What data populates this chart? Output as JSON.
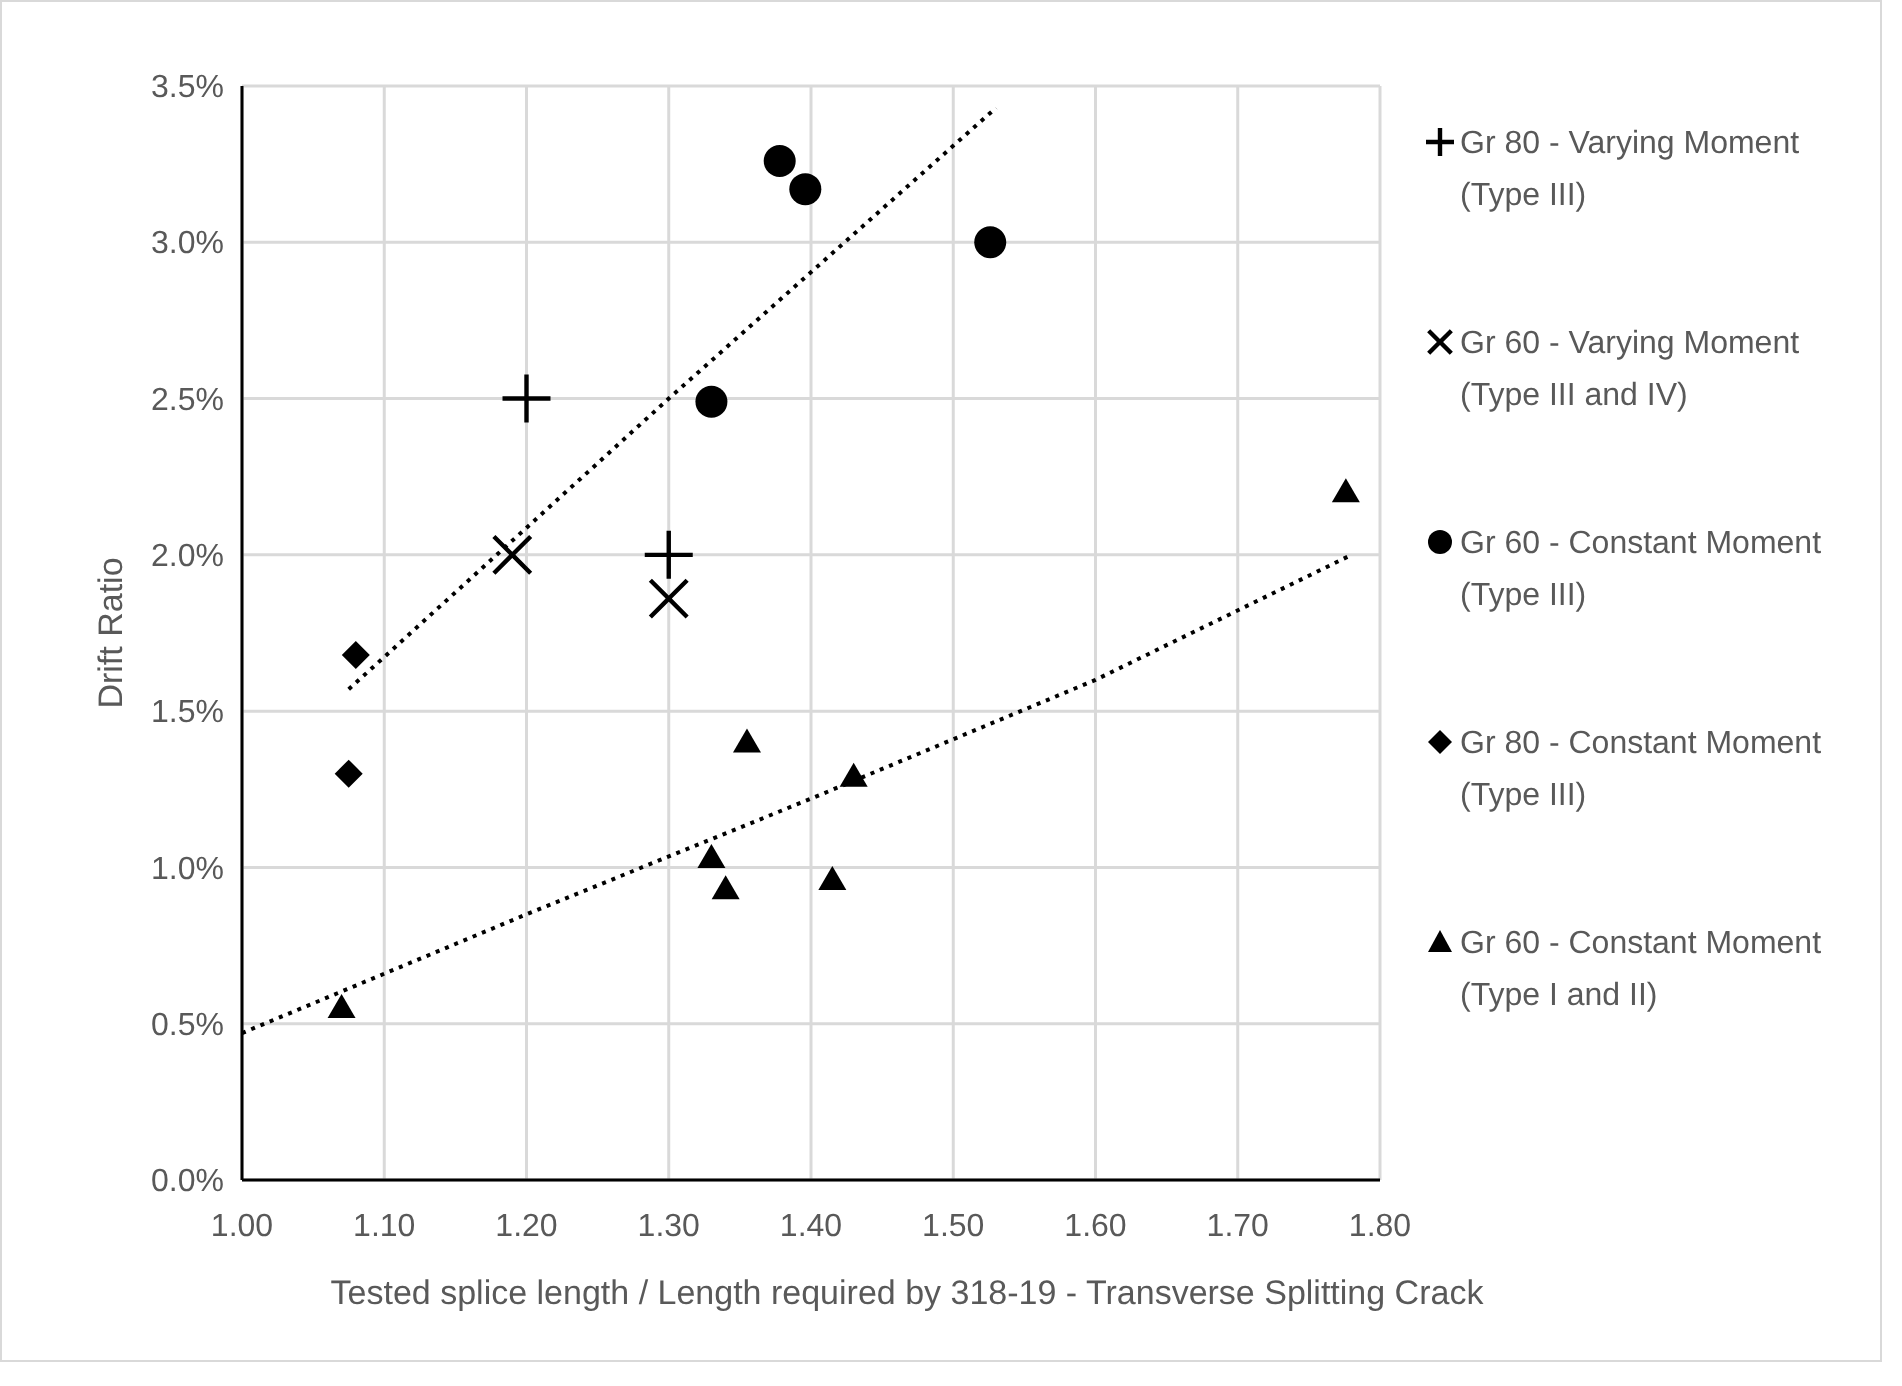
{
  "chart_data": {
    "type": "scatter",
    "xlabel": "Tested splice length / Length required by 318-19 - Transverse Splitting Crack",
    "ylabel": "Drift Ratio",
    "xlim": [
      1,
      1.8
    ],
    "xticks": [
      {
        "value": 1,
        "label": "1.00"
      },
      {
        "value": 1.1,
        "label": "1.10"
      },
      {
        "value": 1.2,
        "label": "1.20"
      },
      {
        "value": 1.3,
        "label": "1.30"
      },
      {
        "value": 1.4,
        "label": "1.40"
      },
      {
        "value": 1.5,
        "label": "1.50"
      },
      {
        "value": 1.6,
        "label": "1.60"
      },
      {
        "value": 1.7,
        "label": "1.70"
      },
      {
        "value": 1.8,
        "label": "1.80"
      }
    ],
    "ylim": [
      0,
      3.5
    ],
    "yticks": [
      {
        "value": 0,
        "label": "0.0%"
      },
      {
        "value": 0.5,
        "label": "0.5%"
      },
      {
        "value": 1,
        "label": "1.0%"
      },
      {
        "value": 1.5,
        "label": "1.5%"
      },
      {
        "value": 2,
        "label": "2.0%"
      },
      {
        "value": 2.5,
        "label": "2.5%"
      },
      {
        "value": 3,
        "label": "3.0%"
      },
      {
        "value": 3.5,
        "label": "3.5%"
      }
    ],
    "grid": true,
    "legend": "right",
    "series": [
      {
        "name": "Gr 80 - Varying Moment (Type III)",
        "color": "#000000",
        "marker": "cross",
        "x": [
          1.2,
          1.3
        ],
        "values": [
          2.5,
          2.0
        ]
      },
      {
        "name": "Gr 60 - Varying Moment (Type III and IV)",
        "color": "#000000",
        "marker": "x",
        "x": [
          1.19,
          1.3
        ],
        "values": [
          2.0,
          1.86
        ]
      },
      {
        "name": "Gr 60 - Constant Moment (Type III)",
        "color": "#000000",
        "marker": "circle",
        "x": [
          1.378,
          1.396,
          1.526,
          1.33
        ],
        "values": [
          3.26,
          3.17,
          3.0,
          2.49
        ]
      },
      {
        "name": "Gr 80 - Constant Moment (Type III)",
        "color": "#000000",
        "marker": "diamond",
        "x": [
          1.08,
          1.075
        ],
        "values": [
          1.68,
          1.3
        ]
      },
      {
        "name": "Gr 60 - Constant Moment (Type I and II)",
        "color": "#000000",
        "marker": "triangle",
        "x": [
          1.07,
          1.355,
          1.43,
          1.33,
          1.34,
          1.415,
          1.776
        ],
        "values": [
          0.55,
          1.4,
          1.29,
          1.03,
          0.93,
          0.96,
          2.2
        ]
      },
      {
        "type": "line",
        "color": "#000000",
        "marker": "none",
        "line_style": "dotted",
        "x": [
          1.075,
          1.3,
          1.53
        ],
        "values": [
          1.57,
          2.5,
          3.43
        ]
      },
      {
        "type": "line",
        "color": "#000000",
        "marker": "none",
        "line_style": "dotted",
        "x": [
          1.0,
          1.2,
          1.4,
          1.6,
          1.78
        ],
        "values": [
          0.47,
          0.85,
          1.22,
          1.6,
          2.0
        ]
      }
    ]
  }
}
